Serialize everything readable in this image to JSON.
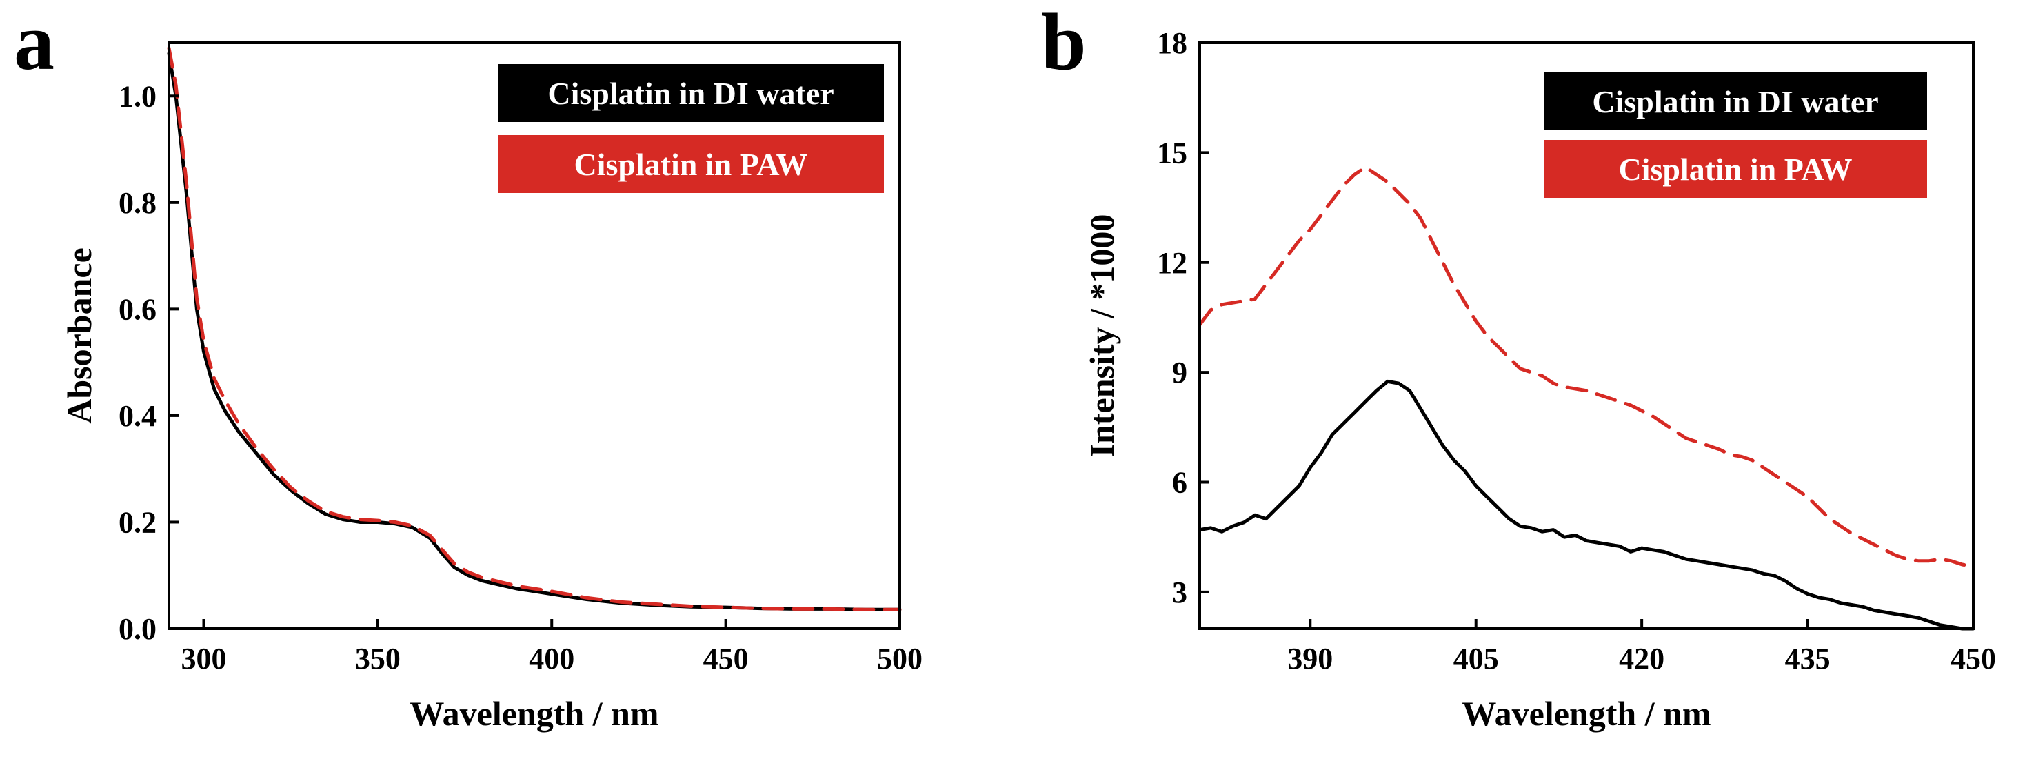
{
  "chart_data": [
    {
      "panel": "a",
      "type": "line",
      "xlabel": "Wavelength / nm",
      "ylabel": "Absorbance",
      "xlim": [
        290,
        500
      ],
      "ylim": [
        0.0,
        1.1
      ],
      "xticks": [
        300,
        350,
        400,
        450,
        500
      ],
      "yticks": [
        0.0,
        0.2,
        0.4,
        0.6,
        0.8,
        1.0
      ],
      "xtick_labels": [
        "300",
        "350",
        "400",
        "450",
        "500"
      ],
      "ytick_labels": [
        "0.0",
        "0.2",
        "0.4",
        "0.6",
        "0.8",
        "1.0"
      ],
      "legend_position": "top-right",
      "series": [
        {
          "name": "Cisplatin in DI water",
          "color": "#000000",
          "style": "solid",
          "x": [
            290,
            292,
            295,
            298,
            300,
            303,
            306,
            310,
            315,
            320,
            325,
            330,
            335,
            340,
            345,
            350,
            355,
            360,
            365,
            368,
            372,
            376,
            380,
            390,
            400,
            410,
            420,
            430,
            440,
            450,
            460,
            470,
            480,
            490,
            500
          ],
          "y": [
            1.08,
            1.0,
            0.82,
            0.6,
            0.52,
            0.45,
            0.41,
            0.37,
            0.33,
            0.29,
            0.26,
            0.235,
            0.215,
            0.205,
            0.2,
            0.2,
            0.197,
            0.19,
            0.17,
            0.145,
            0.115,
            0.1,
            0.09,
            0.075,
            0.065,
            0.055,
            0.048,
            0.044,
            0.041,
            0.04,
            0.038,
            0.037,
            0.037,
            0.036,
            0.036
          ]
        },
        {
          "name": "Cisplatin in PAW",
          "color": "#d62a24",
          "style": "dashed",
          "x": [
            290,
            292,
            295,
            298,
            300,
            303,
            306,
            310,
            315,
            320,
            325,
            330,
            335,
            340,
            345,
            350,
            355,
            360,
            365,
            368,
            372,
            376,
            380,
            390,
            400,
            410,
            420,
            430,
            440,
            450,
            460,
            470,
            480,
            490,
            500
          ],
          "y": [
            1.09,
            1.02,
            0.84,
            0.62,
            0.54,
            0.47,
            0.43,
            0.385,
            0.34,
            0.3,
            0.265,
            0.24,
            0.22,
            0.21,
            0.205,
            0.203,
            0.2,
            0.193,
            0.175,
            0.152,
            0.122,
            0.106,
            0.096,
            0.08,
            0.07,
            0.058,
            0.05,
            0.046,
            0.042,
            0.04,
            0.038,
            0.037,
            0.037,
            0.036,
            0.036
          ]
        }
      ]
    },
    {
      "panel": "b",
      "type": "line",
      "xlabel": "Wavelength / nm",
      "ylabel": "Intensity / *1000",
      "xlim": [
        380,
        450
      ],
      "ylim": [
        2,
        18
      ],
      "xticks": [
        390,
        405,
        420,
        435,
        450
      ],
      "yticks": [
        3,
        6,
        9,
        12,
        15,
        18
      ],
      "xtick_labels": [
        "390",
        "405",
        "420",
        "435",
        "450"
      ],
      "ytick_labels": [
        "3",
        "6",
        "9",
        "12",
        "15",
        "18"
      ],
      "legend_position": "top-right",
      "series": [
        {
          "name": "Cisplatin in DI water",
          "color": "#000000",
          "style": "solid",
          "x": [
            380,
            381,
            382,
            383,
            384,
            385,
            386,
            387,
            388,
            389,
            390,
            391,
            392,
            393,
            394,
            395,
            396,
            397,
            398,
            399,
            400,
            401,
            402,
            403,
            404,
            405,
            406,
            407,
            408,
            409,
            410,
            411,
            412,
            413,
            414,
            415,
            416,
            417,
            418,
            419,
            420,
            421,
            422,
            423,
            424,
            425,
            426,
            427,
            428,
            429,
            430,
            431,
            432,
            433,
            434,
            435,
            436,
            437,
            438,
            439,
            440,
            441,
            442,
            443,
            444,
            445,
            446,
            447,
            448,
            449,
            450
          ],
          "y": [
            4.7,
            4.75,
            4.65,
            4.8,
            4.9,
            5.1,
            5.0,
            5.3,
            5.6,
            5.9,
            6.4,
            6.8,
            7.3,
            7.6,
            7.9,
            8.2,
            8.5,
            8.75,
            8.7,
            8.5,
            8.0,
            7.5,
            7.0,
            6.6,
            6.3,
            5.9,
            5.6,
            5.3,
            5.0,
            4.8,
            4.75,
            4.65,
            4.7,
            4.5,
            4.55,
            4.4,
            4.35,
            4.3,
            4.25,
            4.1,
            4.2,
            4.15,
            4.1,
            4.0,
            3.9,
            3.85,
            3.8,
            3.75,
            3.7,
            3.65,
            3.6,
            3.5,
            3.45,
            3.3,
            3.1,
            2.95,
            2.85,
            2.8,
            2.7,
            2.65,
            2.6,
            2.5,
            2.45,
            2.4,
            2.35,
            2.3,
            2.2,
            2.1,
            2.05,
            2.0,
            2.0
          ]
        },
        {
          "name": "Cisplatin in PAW",
          "color": "#d62a24",
          "style": "dashed",
          "x": [
            380,
            381,
            382,
            383,
            384,
            385,
            386,
            387,
            388,
            389,
            390,
            391,
            392,
            393,
            394,
            395,
            396,
            397,
            398,
            399,
            400,
            401,
            402,
            403,
            404,
            405,
            406,
            407,
            408,
            409,
            410,
            411,
            412,
            413,
            414,
            415,
            416,
            417,
            418,
            419,
            420,
            421,
            422,
            423,
            424,
            425,
            426,
            427,
            428,
            429,
            430,
            431,
            432,
            433,
            434,
            435,
            436,
            437,
            438,
            439,
            440,
            441,
            442,
            443,
            444,
            445,
            446,
            447,
            448,
            449,
            450
          ],
          "y": [
            10.3,
            10.7,
            10.85,
            10.9,
            10.95,
            11.0,
            11.4,
            11.8,
            12.2,
            12.6,
            12.9,
            13.3,
            13.7,
            14.1,
            14.4,
            14.6,
            14.4,
            14.2,
            13.9,
            13.6,
            13.2,
            12.6,
            12.0,
            11.4,
            10.9,
            10.4,
            10.0,
            9.7,
            9.4,
            9.1,
            9.0,
            8.9,
            8.7,
            8.6,
            8.55,
            8.5,
            8.4,
            8.3,
            8.2,
            8.1,
            7.95,
            7.8,
            7.6,
            7.4,
            7.2,
            7.1,
            7.0,
            6.9,
            6.75,
            6.7,
            6.6,
            6.4,
            6.2,
            6.0,
            5.8,
            5.6,
            5.3,
            5.0,
            4.8,
            4.6,
            4.45,
            4.3,
            4.15,
            4.0,
            3.9,
            3.85,
            3.85,
            3.9,
            3.85,
            3.75,
            3.7
          ]
        }
      ]
    }
  ]
}
